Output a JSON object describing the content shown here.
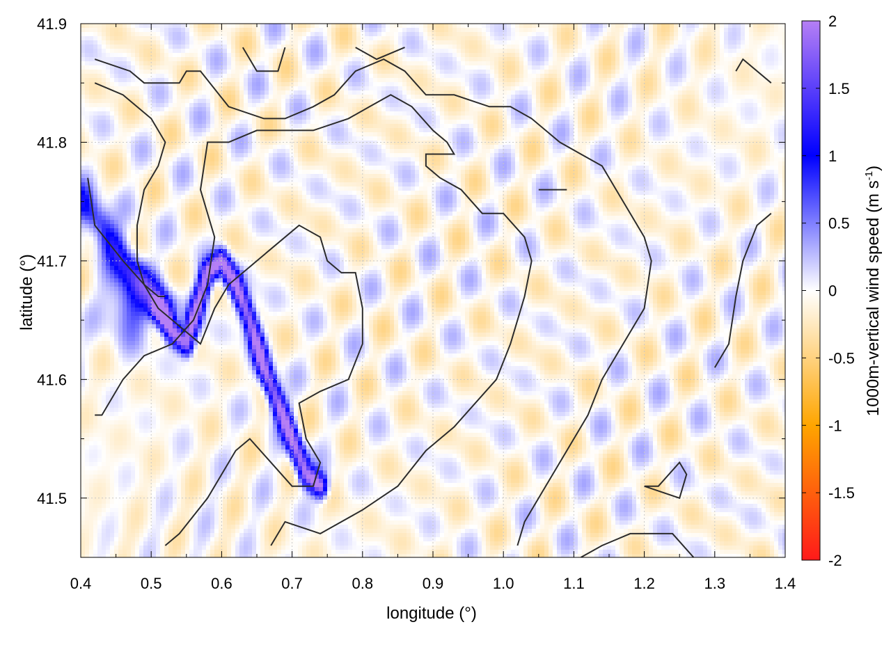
{
  "chart_data": {
    "type": "heatmap",
    "xlabel": "longitude (°)",
    "ylabel": "latitude (°)",
    "xlim": [
      0.4,
      1.4
    ],
    "ylim": [
      41.45,
      41.9
    ],
    "x_ticks": [
      0.4,
      0.5,
      0.6,
      0.7,
      0.8,
      0.9,
      1.0,
      1.1,
      1.2,
      1.3,
      1.4
    ],
    "x_tick_labels": [
      "0.4",
      "0.5",
      "0.6",
      "0.7",
      "0.8",
      "0.9",
      "1.0",
      "1.1",
      "1.2",
      "1.3",
      "1.4"
    ],
    "y_ticks": [
      41.5,
      41.6,
      41.7,
      41.8,
      41.9
    ],
    "y_tick_labels": [
      "41.5",
      "41.6",
      "41.7",
      "41.8",
      "41.9"
    ],
    "grid": true,
    "colorbar": {
      "label_main": "1000m-vertical wind speed (m s",
      "label_sup": "-1",
      "label_end": ")",
      "range": [
        -2,
        2
      ],
      "ticks": [
        2,
        1.5,
        1,
        0.5,
        0,
        -0.5,
        -1,
        -1.5,
        -2
      ],
      "tick_labels": [
        "2",
        "1.5",
        "1",
        "0.5",
        "0",
        "-0.5",
        "-1",
        "-1.5",
        "-2"
      ],
      "colors": [
        "#ff1a1a",
        "#ffa500",
        "#ffffff",
        "#0000ff",
        "#b57ff5"
      ]
    },
    "strong_updraft_band": [
      [
        0.51,
        41.66
      ],
      [
        0.53,
        41.64
      ],
      [
        0.55,
        41.63
      ],
      [
        0.58,
        41.69
      ],
      [
        0.6,
        41.7
      ],
      [
        0.62,
        41.68
      ],
      [
        0.64,
        41.65
      ],
      [
        0.66,
        41.61
      ],
      [
        0.68,
        41.58
      ],
      [
        0.7,
        41.55
      ],
      [
        0.72,
        41.52
      ],
      [
        0.74,
        41.51
      ]
    ],
    "updraft_band_nw": [
      [
        0.4,
        41.75
      ],
      [
        0.43,
        41.73
      ],
      [
        0.46,
        41.7
      ],
      [
        0.49,
        41.68
      ],
      [
        0.52,
        41.66
      ]
    ],
    "contours": [
      [
        [
          0.42,
          41.87
        ],
        [
          0.47,
          41.86
        ],
        [
          0.49,
          41.85
        ],
        [
          0.54,
          41.85
        ],
        [
          0.55,
          41.86
        ],
        [
          0.57,
          41.86
        ],
        [
          0.61,
          41.83
        ],
        [
          0.66,
          41.82
        ],
        [
          0.69,
          41.82
        ],
        [
          0.73,
          41.83
        ],
        [
          0.76,
          41.84
        ],
        [
          0.79,
          41.86
        ],
        [
          0.83,
          41.87
        ],
        [
          0.86,
          41.86
        ],
        [
          0.89,
          41.84
        ],
        [
          0.93,
          41.84
        ],
        [
          0.98,
          41.83
        ],
        [
          1.01,
          41.83
        ],
        [
          1.04,
          41.82
        ],
        [
          1.08,
          41.8
        ],
        [
          1.11,
          41.79
        ],
        [
          1.14,
          41.78
        ],
        [
          1.16,
          41.76
        ],
        [
          1.18,
          41.74
        ],
        [
          1.2,
          41.72
        ],
        [
          1.21,
          41.7
        ],
        [
          1.2,
          41.66
        ],
        [
          1.17,
          41.63
        ],
        [
          1.14,
          41.6
        ],
        [
          1.12,
          41.57
        ],
        [
          1.09,
          41.54
        ],
        [
          1.06,
          41.51
        ],
        [
          1.03,
          41.48
        ],
        [
          1.02,
          41.46
        ]
      ],
      [
        [
          0.42,
          41.85
        ],
        [
          0.46,
          41.84
        ],
        [
          0.5,
          41.82
        ],
        [
          0.52,
          41.8
        ],
        [
          0.51,
          41.78
        ],
        [
          0.49,
          41.76
        ],
        [
          0.48,
          41.73
        ],
        [
          0.48,
          41.7
        ],
        [
          0.49,
          41.68
        ],
        [
          0.51,
          41.67
        ],
        [
          0.52,
          41.67
        ]
      ],
      [
        [
          0.41,
          41.77
        ],
        [
          0.42,
          41.73
        ],
        [
          0.46,
          41.7
        ],
        [
          0.49,
          41.68
        ],
        [
          0.51,
          41.66
        ],
        [
          0.53,
          41.65
        ],
        [
          0.55,
          41.64
        ],
        [
          0.57,
          41.63
        ],
        [
          0.59,
          41.66
        ],
        [
          0.61,
          41.68
        ],
        [
          0.65,
          41.7
        ],
        [
          0.67,
          41.71
        ],
        [
          0.71,
          41.73
        ],
        [
          0.74,
          41.72
        ],
        [
          0.75,
          41.7
        ],
        [
          0.77,
          41.69
        ],
        [
          0.79,
          41.69
        ],
        [
          0.8,
          41.66
        ],
        [
          0.8,
          41.63
        ],
        [
          0.78,
          41.6
        ],
        [
          0.74,
          41.59
        ],
        [
          0.71,
          41.58
        ],
        [
          0.72,
          41.55
        ],
        [
          0.74,
          41.53
        ],
        [
          0.73,
          41.51
        ],
        [
          0.7,
          41.51
        ],
        [
          0.67,
          41.53
        ],
        [
          0.64,
          41.55
        ],
        [
          0.62,
          41.54
        ],
        [
          0.58,
          41.5
        ],
        [
          0.54,
          41.47
        ],
        [
          0.52,
          41.46
        ]
      ],
      [
        [
          0.42,
          41.57
        ],
        [
          0.43,
          41.57
        ],
        [
          0.46,
          41.6
        ],
        [
          0.49,
          41.62
        ],
        [
          0.53,
          41.63
        ],
        [
          0.56,
          41.65
        ],
        [
          0.58,
          41.68
        ],
        [
          0.59,
          41.72
        ],
        [
          0.57,
          41.76
        ],
        [
          0.58,
          41.8
        ],
        [
          0.61,
          41.8
        ],
        [
          0.65,
          41.81
        ],
        [
          0.7,
          41.81
        ],
        [
          0.73,
          41.81
        ],
        [
          0.78,
          41.82
        ],
        [
          0.81,
          41.83
        ],
        [
          0.84,
          41.84
        ],
        [
          0.87,
          41.83
        ],
        [
          0.9,
          41.81
        ],
        [
          0.92,
          41.8
        ],
        [
          0.93,
          41.79
        ],
        [
          0.89,
          41.79
        ],
        [
          0.89,
          41.78
        ],
        [
          0.91,
          41.77
        ],
        [
          0.94,
          41.76
        ],
        [
          0.97,
          41.74
        ],
        [
          1.0,
          41.74
        ],
        [
          1.03,
          41.72
        ],
        [
          1.04,
          41.7
        ],
        [
          1.03,
          41.67
        ],
        [
          1.01,
          41.63
        ],
        [
          0.99,
          41.6
        ],
        [
          0.96,
          41.58
        ],
        [
          0.93,
          41.56
        ],
        [
          0.89,
          41.54
        ],
        [
          0.85,
          41.51
        ],
        [
          0.8,
          41.49
        ],
        [
          0.74,
          41.47
        ],
        [
          0.69,
          41.48
        ],
        [
          0.67,
          41.46
        ]
      ],
      [
        [
          1.33,
          41.86
        ],
        [
          1.34,
          41.87
        ],
        [
          1.38,
          41.85
        ]
      ],
      [
        [
          0.63,
          41.88
        ],
        [
          0.65,
          41.86
        ],
        [
          0.68,
          41.86
        ],
        [
          0.69,
          41.88
        ]
      ],
      [
        [
          0.79,
          41.88
        ],
        [
          0.82,
          41.87
        ],
        [
          0.86,
          41.88
        ]
      ],
      [
        [
          1.05,
          41.76
        ],
        [
          1.07,
          41.76
        ],
        [
          1.09,
          41.76
        ],
        [
          1.07,
          41.76
        ],
        [
          1.05,
          41.76
        ]
      ],
      [
        [
          1.2,
          41.51
        ],
        [
          1.22,
          41.51
        ],
        [
          1.25,
          41.53
        ],
        [
          1.26,
          41.52
        ],
        [
          1.25,
          41.5
        ],
        [
          1.2,
          41.51
        ]
      ],
      [
        [
          1.11,
          41.45
        ],
        [
          1.14,
          41.46
        ],
        [
          1.18,
          41.47
        ],
        [
          1.24,
          41.47
        ],
        [
          1.27,
          41.45
        ]
      ],
      [
        [
          1.38,
          41.74
        ],
        [
          1.36,
          41.73
        ],
        [
          1.34,
          41.7
        ],
        [
          1.33,
          41.67
        ],
        [
          1.32,
          41.63
        ],
        [
          1.3,
          41.61
        ]
      ]
    ]
  }
}
